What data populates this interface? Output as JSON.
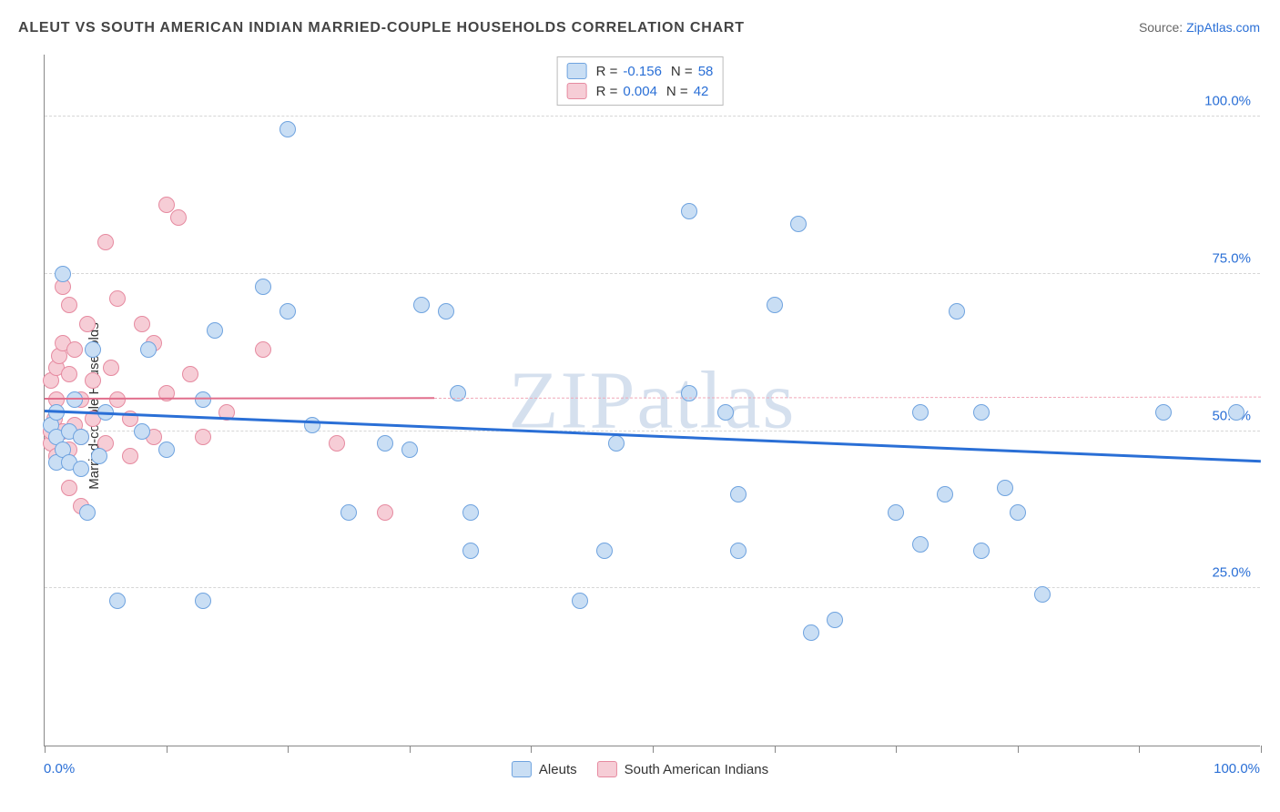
{
  "title": "ALEUT VS SOUTH AMERICAN INDIAN MARRIED-COUPLE HOUSEHOLDS CORRELATION CHART",
  "source_prefix": "Source: ",
  "source_link": "ZipAtlas.com",
  "ylabel": "Married-couple Households",
  "watermark": "ZIPatlas",
  "axes": {
    "xlim": [
      0,
      100
    ],
    "ylim": [
      0,
      110
    ],
    "x_ticks": [
      0,
      10,
      20,
      30,
      40,
      50,
      60,
      70,
      80,
      90,
      100
    ],
    "x_tick_labels": {
      "0": "0.0%",
      "100": "100.0%"
    },
    "y_grid": [
      25,
      50,
      75,
      100
    ],
    "y_tick_labels": {
      "25": "25.0%",
      "50": "50.0%",
      "75": "75.0%",
      "100": "100.0%"
    },
    "grid_color": "#d6d6d6",
    "axis_color": "#888888",
    "tick_font_color": "#2a6fd6"
  },
  "series": {
    "aleuts": {
      "label": "Aleuts",
      "fill": "#c9def4",
      "stroke": "#6fa3df",
      "marker_radius": 9,
      "R": "-0.156",
      "N": "58",
      "trend": {
        "x1": 0,
        "y1": 53,
        "x2": 100,
        "y2": 45,
        "color": "#2a6fd6",
        "width": 3,
        "dashed": false
      },
      "points": [
        [
          0.5,
          51
        ],
        [
          1,
          49
        ],
        [
          1,
          53
        ],
        [
          1,
          45
        ],
        [
          1.5,
          47
        ],
        [
          1.5,
          75
        ],
        [
          2,
          50
        ],
        [
          2,
          45
        ],
        [
          2.5,
          55
        ],
        [
          3,
          49
        ],
        [
          3,
          44
        ],
        [
          3.5,
          37
        ],
        [
          4,
          63
        ],
        [
          4.5,
          46
        ],
        [
          5,
          53
        ],
        [
          6,
          23
        ],
        [
          8,
          50
        ],
        [
          8.5,
          63
        ],
        [
          10,
          47
        ],
        [
          13,
          55
        ],
        [
          13,
          23
        ],
        [
          14,
          66
        ],
        [
          18,
          73
        ],
        [
          20,
          69
        ],
        [
          20,
          98
        ],
        [
          22,
          51
        ],
        [
          25,
          37
        ],
        [
          28,
          48
        ],
        [
          30,
          47
        ],
        [
          31,
          70
        ],
        [
          33,
          69
        ],
        [
          34,
          56
        ],
        [
          35,
          31
        ],
        [
          35,
          37
        ],
        [
          44,
          23
        ],
        [
          46,
          31
        ],
        [
          47,
          48
        ],
        [
          53,
          85
        ],
        [
          53,
          56
        ],
        [
          56,
          53
        ],
        [
          57,
          40
        ],
        [
          57,
          31
        ],
        [
          60,
          70
        ],
        [
          62,
          83
        ],
        [
          63,
          18
        ],
        [
          65,
          20
        ],
        [
          70,
          37
        ],
        [
          72,
          32
        ],
        [
          72,
          53
        ],
        [
          74,
          40
        ],
        [
          75,
          69
        ],
        [
          77,
          53
        ],
        [
          77,
          31
        ],
        [
          79,
          41
        ],
        [
          80,
          37
        ],
        [
          82,
          24
        ],
        [
          92,
          53
        ],
        [
          98,
          53
        ]
      ]
    },
    "sai": {
      "label": "South American Indians",
      "fill": "#f6cdd6",
      "stroke": "#e68aa0",
      "marker_radius": 9,
      "R": "0.004",
      "N": "42",
      "trend_solid": {
        "x1": 0,
        "y1": 55,
        "x2": 32,
        "y2": 55.1,
        "color": "#e16e8c",
        "width": 2.5,
        "dashed": false
      },
      "trend_dash": {
        "x1": 32,
        "y1": 55.1,
        "x2": 100,
        "y2": 55.3,
        "color": "#f0a8b8",
        "width": 1.5,
        "dashed": true
      },
      "points": [
        [
          0.5,
          48
        ],
        [
          0.5,
          50
        ],
        [
          0.5,
          58
        ],
        [
          0.8,
          52
        ],
        [
          1,
          46
        ],
        [
          1,
          55
        ],
        [
          1,
          60
        ],
        [
          1.2,
          62
        ],
        [
          1.5,
          50
        ],
        [
          1.5,
          64
        ],
        [
          1.5,
          73
        ],
        [
          2,
          47
        ],
        [
          2,
          59
        ],
        [
          2,
          70
        ],
        [
          2,
          41
        ],
        [
          2.5,
          51
        ],
        [
          2.5,
          63
        ],
        [
          3,
          49
        ],
        [
          3,
          55
        ],
        [
          3,
          38
        ],
        [
          3.5,
          67
        ],
        [
          4,
          52
        ],
        [
          4,
          58
        ],
        [
          5,
          80
        ],
        [
          5,
          48
        ],
        [
          5.5,
          60
        ],
        [
          6,
          55
        ],
        [
          6,
          71
        ],
        [
          7,
          46
        ],
        [
          7,
          52
        ],
        [
          8,
          67
        ],
        [
          9,
          49
        ],
        [
          9,
          64
        ],
        [
          10,
          86
        ],
        [
          10,
          56
        ],
        [
          11,
          84
        ],
        [
          12,
          59
        ],
        [
          13,
          49
        ],
        [
          15,
          53
        ],
        [
          18,
          63
        ],
        [
          24,
          48
        ],
        [
          28,
          37
        ]
      ]
    }
  },
  "legend_top": {
    "R_label": "R =",
    "N_label": "N ="
  }
}
